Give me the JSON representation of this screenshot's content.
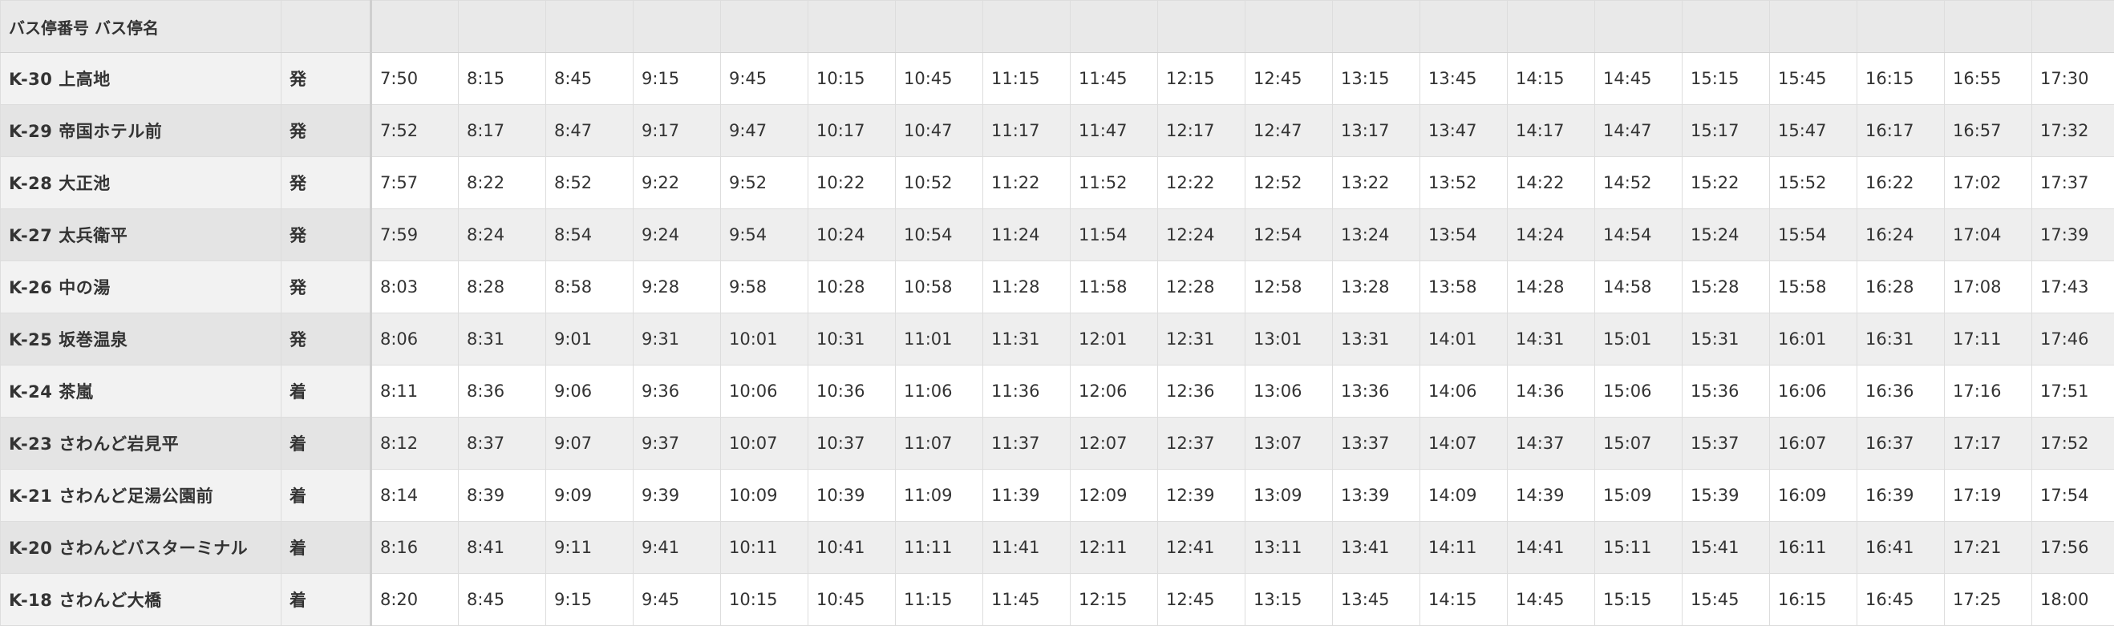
{
  "header": {
    "stop_label": "バス停番号 バス停名",
    "dir_label": ""
  },
  "stops": [
    {
      "name": "K-30 上高地",
      "dir": "発",
      "times": [
        "7:50",
        "8:15",
        "8:45",
        "9:15",
        "9:45",
        "10:15",
        "10:45",
        "11:15",
        "11:45",
        "12:15",
        "12:45",
        "13:15",
        "13:45",
        "14:15",
        "14:45",
        "15:15",
        "15:45",
        "16:15",
        "16:55",
        "17:30"
      ]
    },
    {
      "name": "K-29 帝国ホテル前",
      "dir": "発",
      "times": [
        "7:52",
        "8:17",
        "8:47",
        "9:17",
        "9:47",
        "10:17",
        "10:47",
        "11:17",
        "11:47",
        "12:17",
        "12:47",
        "13:17",
        "13:47",
        "14:17",
        "14:47",
        "15:17",
        "15:47",
        "16:17",
        "16:57",
        "17:32"
      ]
    },
    {
      "name": "K-28 大正池",
      "dir": "発",
      "times": [
        "7:57",
        "8:22",
        "8:52",
        "9:22",
        "9:52",
        "10:22",
        "10:52",
        "11:22",
        "11:52",
        "12:22",
        "12:52",
        "13:22",
        "13:52",
        "14:22",
        "14:52",
        "15:22",
        "15:52",
        "16:22",
        "17:02",
        "17:37"
      ]
    },
    {
      "name": "K-27 太兵衛平",
      "dir": "発",
      "times": [
        "7:59",
        "8:24",
        "8:54",
        "9:24",
        "9:54",
        "10:24",
        "10:54",
        "11:24",
        "11:54",
        "12:24",
        "12:54",
        "13:24",
        "13:54",
        "14:24",
        "14:54",
        "15:24",
        "15:54",
        "16:24",
        "17:04",
        "17:39"
      ]
    },
    {
      "name": "K-26 中の湯",
      "dir": "発",
      "times": [
        "8:03",
        "8:28",
        "8:58",
        "9:28",
        "9:58",
        "10:28",
        "10:58",
        "11:28",
        "11:58",
        "12:28",
        "12:58",
        "13:28",
        "13:58",
        "14:28",
        "14:58",
        "15:28",
        "15:58",
        "16:28",
        "17:08",
        "17:43"
      ]
    },
    {
      "name": "K-25 坂巻温泉",
      "dir": "発",
      "times": [
        "8:06",
        "8:31",
        "9:01",
        "9:31",
        "10:01",
        "10:31",
        "11:01",
        "11:31",
        "12:01",
        "12:31",
        "13:01",
        "13:31",
        "14:01",
        "14:31",
        "15:01",
        "15:31",
        "16:01",
        "16:31",
        "17:11",
        "17:46"
      ]
    },
    {
      "name": "K-24 茶嵐",
      "dir": "着",
      "times": [
        "8:11",
        "8:36",
        "9:06",
        "9:36",
        "10:06",
        "10:36",
        "11:06",
        "11:36",
        "12:06",
        "12:36",
        "13:06",
        "13:36",
        "14:06",
        "14:36",
        "15:06",
        "15:36",
        "16:06",
        "16:36",
        "17:16",
        "17:51"
      ]
    },
    {
      "name": "K-23 さわんど岩見平",
      "dir": "着",
      "times": [
        "8:12",
        "8:37",
        "9:07",
        "9:37",
        "10:07",
        "10:37",
        "11:07",
        "11:37",
        "12:07",
        "12:37",
        "13:07",
        "13:37",
        "14:07",
        "14:37",
        "15:07",
        "15:37",
        "16:07",
        "16:37",
        "17:17",
        "17:52"
      ]
    },
    {
      "name": "K-21 さわんど足湯公園前",
      "dir": "着",
      "times": [
        "8:14",
        "8:39",
        "9:09",
        "9:39",
        "10:09",
        "10:39",
        "11:09",
        "11:39",
        "12:09",
        "12:39",
        "13:09",
        "13:39",
        "14:09",
        "14:39",
        "15:09",
        "15:39",
        "16:09",
        "16:39",
        "17:19",
        "17:54"
      ]
    },
    {
      "name": "K-20 さわんどバスターミナル",
      "dir": "着",
      "times": [
        "8:16",
        "8:41",
        "9:11",
        "9:41",
        "10:11",
        "10:41",
        "11:11",
        "11:41",
        "12:11",
        "12:41",
        "13:11",
        "13:41",
        "14:11",
        "14:41",
        "15:11",
        "15:41",
        "16:11",
        "16:41",
        "17:21",
        "17:56"
      ]
    },
    {
      "name": "K-18 さわんど大橋",
      "dir": "着",
      "times": [
        "8:20",
        "8:45",
        "9:15",
        "9:45",
        "10:15",
        "10:45",
        "11:15",
        "11:45",
        "12:15",
        "12:45",
        "13:15",
        "13:45",
        "14:15",
        "14:45",
        "15:15",
        "15:45",
        "16:15",
        "16:45",
        "17:25",
        "18:00"
      ]
    }
  ]
}
